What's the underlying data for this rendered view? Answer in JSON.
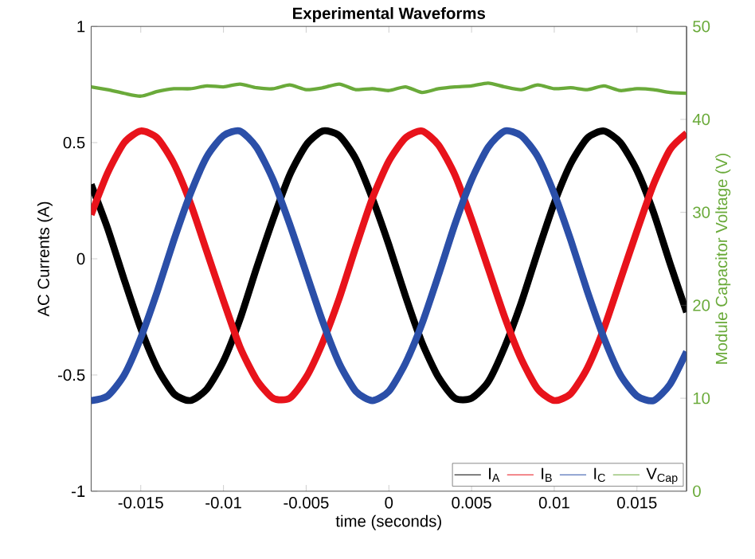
{
  "chart_data": {
    "type": "line",
    "title": "Experimental Waveforms",
    "xlabel": "time (seconds)",
    "ylabel": "AC Currents (A)",
    "y2label": "Module Capacitor Voltage (V)",
    "x": [
      -0.018,
      -0.017,
      -0.016,
      -0.015,
      -0.014,
      -0.013,
      -0.012,
      -0.011,
      -0.01,
      -0.009,
      -0.008,
      -0.007,
      -0.006,
      -0.005,
      -0.004,
      -0.003,
      -0.002,
      -0.001,
      0,
      0.001,
      0.002,
      0.003,
      0.004,
      0.005,
      0.006,
      0.007,
      0.008,
      0.009,
      0.01,
      0.011,
      0.012,
      0.013,
      0.014,
      0.015,
      0.016,
      0.017,
      0.018
    ],
    "series": [
      {
        "name": "I$_{A}$",
        "color": "#000000",
        "values": [
          0.32,
          0.13,
          -0.09,
          -0.3,
          -0.47,
          -0.58,
          -0.61,
          -0.56,
          -0.44,
          -0.26,
          -0.04,
          0.17,
          0.36,
          0.49,
          0.55,
          0.53,
          0.43,
          0.26,
          0.06,
          -0.16,
          -0.36,
          -0.51,
          -0.6,
          -0.6,
          -0.53,
          -0.38,
          -0.19,
          0.03,
          0.24,
          0.41,
          0.52,
          0.55,
          0.5,
          0.38,
          0.2,
          -0.02,
          -0.23
        ]
      },
      {
        "name": "I$_{B}$",
        "color": "#e8131b",
        "values": [
          0.19,
          0.37,
          0.5,
          0.55,
          0.52,
          0.41,
          0.24,
          0.03,
          -0.18,
          -0.38,
          -0.52,
          -0.6,
          -0.6,
          -0.51,
          -0.36,
          -0.17,
          0.05,
          0.26,
          0.42,
          0.52,
          0.55,
          0.49,
          0.36,
          0.17,
          -0.04,
          -0.25,
          -0.43,
          -0.56,
          -0.61,
          -0.58,
          -0.47,
          -0.3,
          -0.09,
          0.12,
          0.32,
          0.47,
          0.54
        ]
      },
      {
        "name": "I$_{C}$",
        "color": "#2b4fa8",
        "values": [
          -0.61,
          -0.59,
          -0.5,
          -0.34,
          -0.14,
          0.08,
          0.28,
          0.44,
          0.53,
          0.55,
          0.48,
          0.34,
          0.15,
          -0.06,
          -0.27,
          -0.45,
          -0.57,
          -0.61,
          -0.57,
          -0.45,
          -0.28,
          -0.07,
          0.15,
          0.34,
          0.48,
          0.55,
          0.53,
          0.44,
          0.28,
          0.08,
          -0.14,
          -0.34,
          -0.5,
          -0.59,
          -0.61,
          -0.54,
          -0.4
        ]
      },
      {
        "name": "V$_{Cap}$",
        "color": "#6aaa3a",
        "axis": "y2",
        "values": [
          43.5,
          43.2,
          42.8,
          42.5,
          43.0,
          43.3,
          43.3,
          43.6,
          43.5,
          43.8,
          43.4,
          43.3,
          43.7,
          43.2,
          43.4,
          43.8,
          43.2,
          43.3,
          43.1,
          43.5,
          42.9,
          43.3,
          43.5,
          43.6,
          43.9,
          43.5,
          43.2,
          43.7,
          43.3,
          43.4,
          43.2,
          43.6,
          43.1,
          43.3,
          43.2,
          42.9,
          42.8
        ]
      }
    ],
    "xlim": [
      -0.018,
      0.018
    ],
    "xticks": [
      -0.015,
      -0.01,
      -0.005,
      0,
      0.005,
      0.01,
      0.015
    ],
    "ylim": [
      -1,
      1
    ],
    "yticks": [
      -1,
      -0.5,
      0,
      0.5,
      1
    ],
    "y2lim": [
      0,
      50
    ],
    "y2ticks": [
      0,
      10,
      20,
      30,
      40,
      50
    ],
    "legend": "bottom right",
    "grid": false
  }
}
